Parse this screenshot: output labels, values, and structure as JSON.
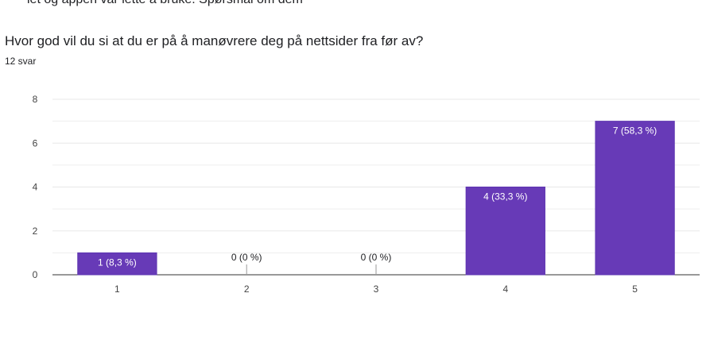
{
  "form": {
    "cut_off_text": "iet og appen var lette å bruke. Spørsmål om dem",
    "question": "Hvor god vil du si at du er på å manøvrere deg på nettsider fra før av?",
    "response_count": "12 svar"
  },
  "colors": {
    "bar": "#673ab7",
    "bar_border": "#5e35b1",
    "grid": "#e8e8e8",
    "axis": "#333333"
  },
  "chart_data": {
    "type": "bar",
    "title": "",
    "xlabel": "",
    "ylabel": "",
    "categories": [
      "1",
      "2",
      "3",
      "4",
      "5"
    ],
    "values": [
      1,
      0,
      0,
      4,
      7
    ],
    "data_labels": [
      "1 (8,3 %)",
      "0 (0 %)",
      "0 (0 %)",
      "4 (33,3 %)",
      "7 (58,3 %)"
    ],
    "ylim": [
      0,
      8
    ],
    "yticks": [
      "0",
      "2",
      "4",
      "6",
      "8"
    ],
    "grid": true,
    "legend": "none"
  }
}
